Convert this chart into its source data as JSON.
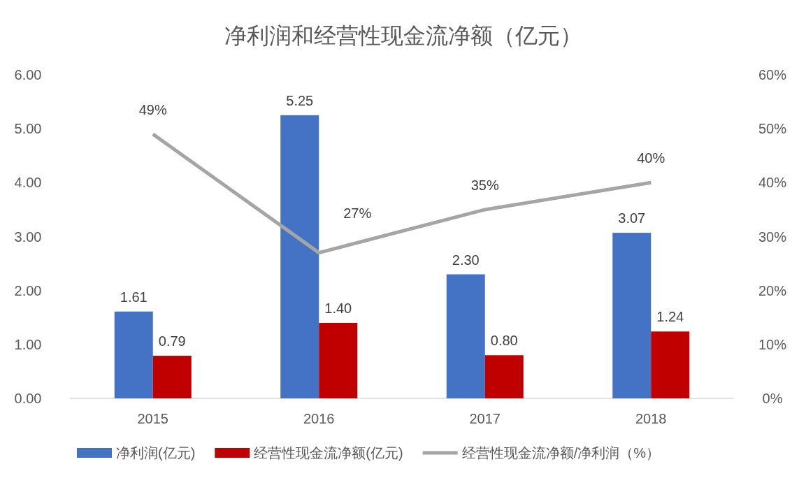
{
  "chart_data": {
    "type": "bar",
    "title": "净利润和经营性现金流净额（亿元）",
    "categories": [
      "2015",
      "2016",
      "2017",
      "2018"
    ],
    "series": [
      {
        "name": "净利润(亿元)",
        "color": "#4472c4",
        "values": [
          1.61,
          5.25,
          2.3,
          3.07
        ],
        "value_labels": [
          "1.61",
          "5.25",
          "2.30",
          "3.07"
        ]
      },
      {
        "name": "经营性现金流净额(亿元)",
        "color": "#c00000",
        "values": [
          0.79,
          1.4,
          0.8,
          1.24
        ],
        "value_labels": [
          "0.79",
          "1.40",
          "0.80",
          "1.24"
        ]
      },
      {
        "name": "经营性现金流净额/净利润（%）",
        "type": "line",
        "axis": "y2",
        "color": "#a5a5a5",
        "values": [
          49,
          27,
          35,
          40
        ],
        "value_labels": [
          "49%",
          "27%",
          "35%",
          "40%"
        ]
      }
    ],
    "ylim": [
      0,
      6
    ],
    "yticks": [
      {
        "value": 0,
        "label": "0.00"
      },
      {
        "value": 1,
        "label": "1.00"
      },
      {
        "value": 2,
        "label": "2.00"
      },
      {
        "value": 3,
        "label": "3.00"
      },
      {
        "value": 4,
        "label": "4.00"
      },
      {
        "value": 5,
        "label": "5.00"
      },
      {
        "value": 6,
        "label": "6.00"
      }
    ],
    "y2lim": [
      0,
      60
    ],
    "y2ticks": [
      {
        "value": 0,
        "label": "0%"
      },
      {
        "value": 10,
        "label": "10%"
      },
      {
        "value": 20,
        "label": "20%"
      },
      {
        "value": 30,
        "label": "30%"
      },
      {
        "value": 40,
        "label": "40%"
      },
      {
        "value": 50,
        "label": "50%"
      },
      {
        "value": 60,
        "label": "60%"
      }
    ],
    "legend": "bottom",
    "marker": "none",
    "line_style": "solid"
  }
}
